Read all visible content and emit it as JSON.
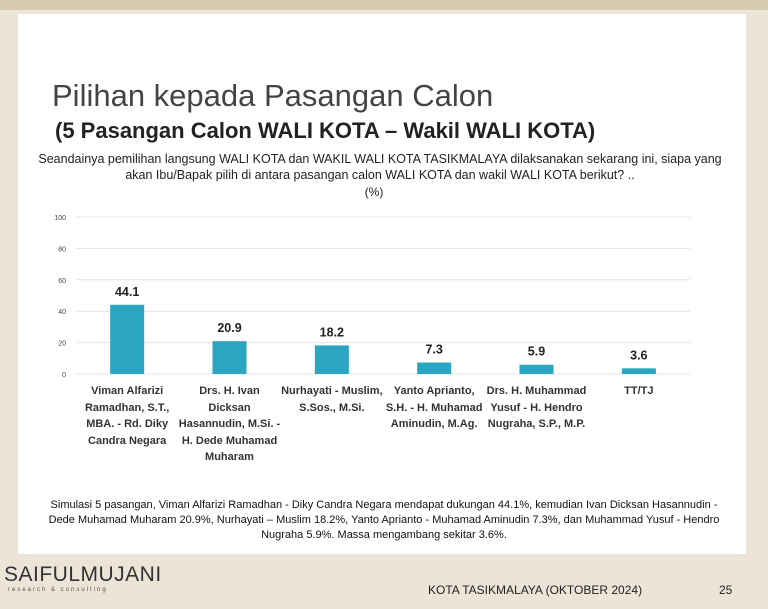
{
  "chart_data": {
    "type": "bar",
    "title": "Pilihan kepada Pasangan Calon",
    "subtitle": "(5 Pasangan Calon WALI KOTA – Wakil WALI KOTA)",
    "question": "Seandainya pemilihan langsung WALI KOTA dan WAKIL WALI KOTA TASIKMALAYA dilaksanakan sekarang ini, siapa yang akan Ibu/Bapak pilih di antara pasangan calon WALI KOTA dan wakil WALI KOTA berikut? ..",
    "y_label": "(%)",
    "categories": [
      "Viman Alfarizi Ramadhan, S.T., MBA. - Rd. Diky Candra Negara",
      "Drs. H. Ivan Dicksan Hasannudin, M.Si. - H. Dede Muhamad Muharam",
      "Nurhayati - Muslim, S.Sos., M.Si.",
      "Yanto Aprianto, S.H. - H. Muhamad Aminudin, M.Ag.",
      "Drs. H. Muhammad Yusuf - H. Hendro Nugraha, S.P., M.P.",
      "TT/TJ"
    ],
    "values": [
      44.1,
      20.9,
      18.2,
      7.3,
      5.9,
      3.6
    ],
    "color": "#2ba6c2",
    "ylim": [
      0,
      100
    ],
    "yticks": [
      0,
      20,
      40,
      60,
      80,
      100
    ],
    "grid": true,
    "note": "Simulasi 5 pasangan, Viman Alfarizi Ramadhan - Diky Candra Negara mendapat dukungan 44.1%, kemudian Ivan Dicksan Hasannudin - Dede Muhamad Muharam 20.9%, Nurhayati – Muslim 18.2%, Yanto Aprianto - Muhamad Aminudin 7.3%, dan Muhammad Yusuf - Hendro Nugraha 5.9%. Massa mengambang sekitar 3.6%."
  },
  "footer": {
    "logo": "SAIFULMUJANI",
    "logo_tagline": "research & consulting",
    "location": "KOTA TASIKMALAYA (OKTOBER 2024)",
    "page": "25"
  }
}
